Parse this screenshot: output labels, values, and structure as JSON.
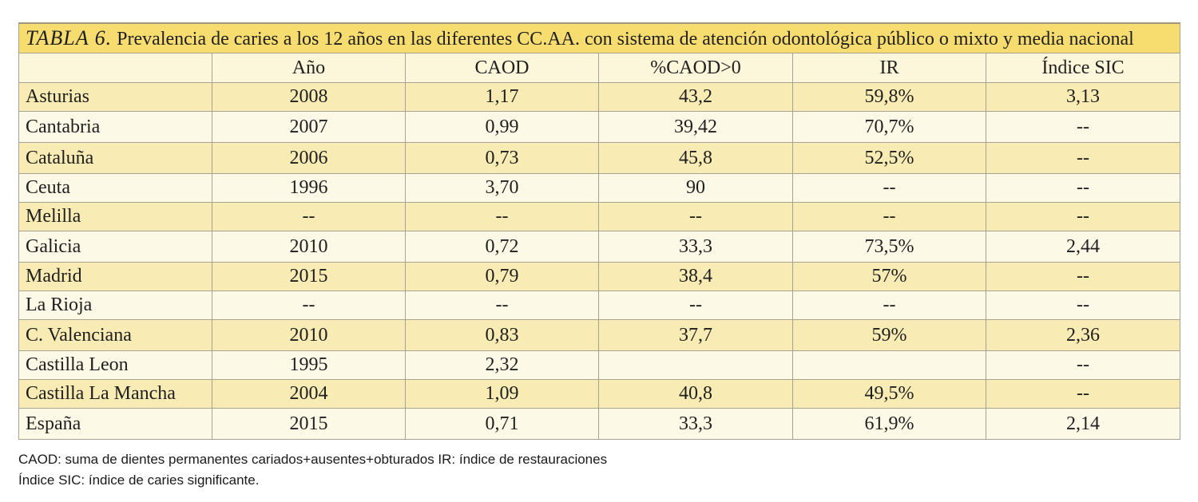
{
  "table": {
    "title_label": "TABLA 6.",
    "title_text": "Prevalencia de caries a los 12 años en las diferentes CC.AA. con sistema de atención odontológica público o mixto y media nacional",
    "columns": [
      "",
      "Año",
      "CAOD",
      "%CAOD>0",
      "IR",
      "Índice SIC"
    ],
    "rows": [
      [
        "Asturias",
        "2008",
        "1,17",
        "43,2",
        "59,8%",
        "3,13"
      ],
      [
        "Cantabria",
        "2007",
        "0,99",
        "39,42",
        "70,7%",
        "--"
      ],
      [
        "Cataluña",
        "2006",
        "0,73",
        "45,8",
        "52,5%",
        "--"
      ],
      [
        "Ceuta",
        "1996",
        "3,70",
        "90",
        "--",
        "--"
      ],
      [
        "Melilla",
        "--",
        "--",
        "--",
        "--",
        "--"
      ],
      [
        "Galicia",
        "2010",
        "0,72",
        "33,3",
        "73,5%",
        "2,44"
      ],
      [
        "Madrid",
        "2015",
        "0,79",
        "38,4",
        "57%",
        "--"
      ],
      [
        "La Rioja",
        "--",
        "--",
        "--",
        "--",
        "--"
      ],
      [
        "C. Valenciana",
        "2010",
        "0,83",
        "37,7",
        "59%",
        "2,36"
      ],
      [
        "Castilla Leon",
        "1995",
        "2,32",
        "",
        "",
        "--"
      ],
      [
        "Castilla La Mancha",
        "2004",
        "1,09",
        "40,8",
        "49,5%",
        "--"
      ],
      [
        "España",
        "2015",
        "0,71",
        "33,3",
        "61,9%",
        "2,14"
      ]
    ]
  },
  "footnotes": {
    "line1": "CAOD: suma de dientes permanentes cariados+ausentes+obturados IR: índice de restauraciones",
    "line2": "Índice SIC: índice de caries significante."
  },
  "colors": {
    "title_band": "#f7dd6f",
    "row_band_dark": "#f8ebb4",
    "row_band_light": "#fdf9e7",
    "border": "#a8a294"
  }
}
